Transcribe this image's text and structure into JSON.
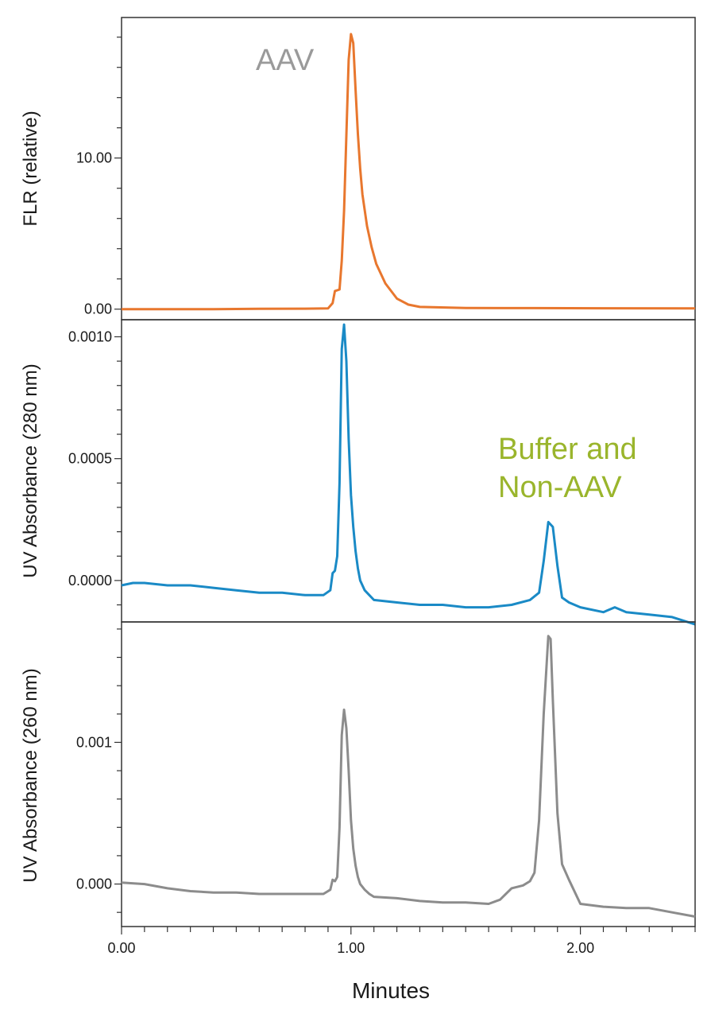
{
  "chart_data": [
    {
      "type": "line",
      "panel": "top",
      "ylabel": "FLR (relative)",
      "xlabel": "",
      "xlim": [
        0,
        2.5
      ],
      "ylim": [
        -0.7,
        19.3
      ],
      "yticks": [
        {
          "value": 0,
          "label": "0.00"
        },
        {
          "value": 10,
          "label": "10.00"
        }
      ],
      "annotations": [
        {
          "text": "AAV",
          "color": "#9a9a9a",
          "position": "top-left of main peak"
        }
      ],
      "series": [
        {
          "name": "FLR",
          "color": "#e8772e",
          "x": [
            0,
            0.2,
            0.4,
            0.6,
            0.8,
            0.9,
            0.92,
            0.93,
            0.95,
            0.96,
            0.97,
            0.98,
            0.99,
            1.0,
            1.01,
            1.02,
            1.03,
            1.04,
            1.05,
            1.07,
            1.09,
            1.11,
            1.15,
            1.2,
            1.25,
            1.3,
            1.5,
            1.8,
            2.1,
            2.5
          ],
          "y": [
            0,
            0,
            0,
            0.02,
            0.03,
            0.05,
            0.4,
            1.2,
            1.3,
            3.2,
            6.5,
            11.5,
            16.5,
            18.2,
            17.6,
            14.5,
            11.6,
            9.3,
            7.6,
            5.5,
            4.1,
            3.0,
            1.7,
            0.7,
            0.3,
            0.15,
            0.08,
            0.07,
            0.06,
            0.05
          ]
        }
      ]
    },
    {
      "type": "line",
      "panel": "middle",
      "ylabel": "UV Absorbance (280 nm)",
      "xlabel": "",
      "xlim": [
        0,
        2.5
      ],
      "ylim": [
        -0.00017,
        0.00107
      ],
      "yticks": [
        {
          "value": 0,
          "label": "0.0000"
        },
        {
          "value": 0.0005,
          "label": "0.0005"
        },
        {
          "value": 0.001,
          "label": "0.0010"
        }
      ],
      "annotations": [
        {
          "text": "Buffer and",
          "color": "#9ab52c",
          "position": "above right peak"
        },
        {
          "text": "Non-AAV",
          "color": "#9ab52c",
          "position": "above right peak"
        }
      ],
      "series": [
        {
          "name": "UV 280 nm",
          "color": "#1a8ac6",
          "x": [
            0,
            0.05,
            0.1,
            0.2,
            0.3,
            0.4,
            0.5,
            0.6,
            0.7,
            0.8,
            0.88,
            0.91,
            0.92,
            0.93,
            0.94,
            0.95,
            0.96,
            0.97,
            0.98,
            0.99,
            1.0,
            1.01,
            1.02,
            1.03,
            1.04,
            1.06,
            1.08,
            1.1,
            1.2,
            1.3,
            1.4,
            1.5,
            1.6,
            1.7,
            1.78,
            1.82,
            1.84,
            1.86,
            1.88,
            1.9,
            1.92,
            1.95,
            2.0,
            2.1,
            2.15,
            2.2,
            2.3,
            2.4,
            2.5
          ],
          "y": [
            -2e-05,
            -1e-05,
            -1e-05,
            -2e-05,
            -2e-05,
            -3e-05,
            -4e-05,
            -5e-05,
            -5e-05,
            -6e-05,
            -6e-05,
            -4e-05,
            3e-05,
            4e-05,
            0.0001,
            0.0004,
            0.00095,
            0.00105,
            0.0009,
            0.00058,
            0.00035,
            0.00022,
            0.00012,
            5e-05,
            0.0,
            -4e-05,
            -6e-05,
            -8e-05,
            -9e-05,
            -0.0001,
            -0.0001,
            -0.00011,
            -0.00011,
            -0.0001,
            -8e-05,
            -5e-05,
            8e-05,
            0.00024,
            0.00022,
            6e-05,
            -7e-05,
            -9e-05,
            -0.00011,
            -0.00013,
            -0.00011,
            -0.00013,
            -0.00014,
            -0.00015,
            -0.00018
          ]
        }
      ]
    },
    {
      "type": "line",
      "panel": "bottom",
      "ylabel": "UV Absorbance (260 nm)",
      "xlabel": "Minutes",
      "xlim": [
        0,
        2.5
      ],
      "ylim": [
        -0.0003,
        0.00185
      ],
      "xticks": [
        {
          "value": 0,
          "label": "0.00"
        },
        {
          "value": 1,
          "label": "1.00"
        },
        {
          "value": 2,
          "label": "2.00"
        }
      ],
      "yticks": [
        {
          "value": 0,
          "label": "0.000"
        },
        {
          "value": 0.001,
          "label": "0.001"
        }
      ],
      "series": [
        {
          "name": "UV 260 nm",
          "color": "#8c8c8c",
          "x": [
            0,
            0.1,
            0.2,
            0.3,
            0.4,
            0.5,
            0.6,
            0.7,
            0.8,
            0.88,
            0.91,
            0.92,
            0.93,
            0.94,
            0.95,
            0.96,
            0.97,
            0.98,
            0.99,
            1.0,
            1.01,
            1.02,
            1.03,
            1.04,
            1.06,
            1.08,
            1.1,
            1.2,
            1.3,
            1.4,
            1.5,
            1.6,
            1.65,
            1.7,
            1.75,
            1.78,
            1.8,
            1.82,
            1.84,
            1.86,
            1.87,
            1.88,
            1.9,
            1.92,
            1.95,
            2.0,
            2.1,
            2.2,
            2.3,
            2.4,
            2.5
          ],
          "y": [
            1e-05,
            0.0,
            -3e-05,
            -5e-05,
            -6e-05,
            -6e-05,
            -7e-05,
            -7e-05,
            -7e-05,
            -7e-05,
            -4e-05,
            3e-05,
            2e-05,
            5e-05,
            0.0004,
            0.00105,
            0.00123,
            0.0011,
            0.0008,
            0.00045,
            0.00025,
            0.00013,
            5e-05,
            0.0,
            -4e-05,
            -7e-05,
            -9e-05,
            -0.0001,
            -0.00012,
            -0.00013,
            -0.00013,
            -0.00014,
            -0.00011,
            -3e-05,
            -1e-05,
            2e-05,
            8e-05,
            0.00045,
            0.0012,
            0.00175,
            0.00173,
            0.0013,
            0.0005,
            0.00014,
            3e-05,
            -0.00014,
            -0.00016,
            -0.00017,
            -0.00017,
            -0.0002,
            -0.00023
          ]
        }
      ]
    }
  ]
}
